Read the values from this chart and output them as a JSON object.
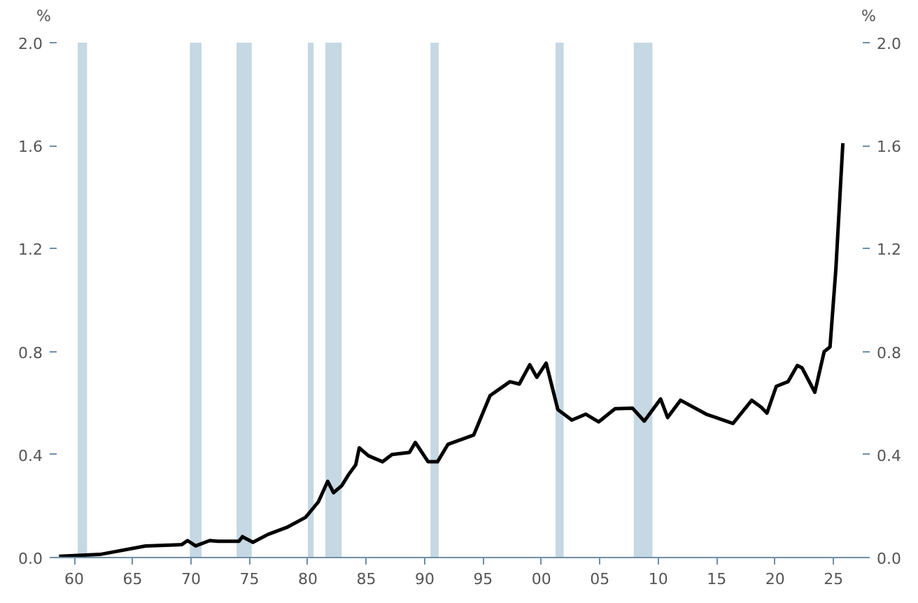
{
  "chart_data": {
    "type": "line",
    "ylabel": "%",
    "y2label": "%",
    "x": [
      1958.7,
      1962.2,
      1966.1,
      1969.2,
      1969.7,
      1970.4,
      1971.6,
      1972.3,
      1974.1,
      1974.4,
      1975.3,
      1976.6,
      1978.2,
      1979.8,
      1980.9,
      1981.7,
      1982.2,
      1982.9,
      1983.5,
      1984.1,
      1984.4,
      1985.2,
      1986.4,
      1987.2,
      1988.7,
      1989.2,
      1990.3,
      1991.1,
      1992.0,
      1994.2,
      1995.6,
      1997.3,
      1998.1,
      1999.0,
      1999.6,
      2000.4,
      2001.4,
      2002.6,
      2003.8,
      2004.9,
      2006.3,
      2007.8,
      2008.8,
      2010.2,
      2010.8,
      2011.9,
      2014.1,
      2016.4,
      2018.0,
      2018.8,
      2019.3,
      2020.1,
      2021.1,
      2021.9,
      2022.3,
      2023.4,
      2024.2,
      2024.7,
      2025.2,
      2025.8
    ],
    "series": [
      {
        "color": "#000000",
        "values": [
          0.005,
          0.012,
          0.045,
          0.05,
          0.066,
          0.045,
          0.066,
          0.063,
          0.063,
          0.081,
          0.059,
          0.09,
          0.117,
          0.156,
          0.216,
          0.296,
          0.252,
          0.279,
          0.323,
          0.36,
          0.426,
          0.395,
          0.372,
          0.4,
          0.408,
          0.447,
          0.372,
          0.372,
          0.44,
          0.476,
          0.629,
          0.683,
          0.674,
          0.749,
          0.7,
          0.755,
          0.575,
          0.534,
          0.557,
          0.527,
          0.578,
          0.58,
          0.53,
          0.616,
          0.544,
          0.611,
          0.557,
          0.521,
          0.611,
          0.584,
          0.561,
          0.665,
          0.683,
          0.746,
          0.737,
          0.642,
          0.8,
          0.818,
          1.12,
          1.61
        ]
      }
    ],
    "xlim": [
      1958.5,
      2027.5
    ],
    "xticks": [
      {
        "value": 1960,
        "label": "60"
      },
      {
        "value": 1965,
        "label": "65"
      },
      {
        "value": 1970,
        "label": "70"
      },
      {
        "value": 1975,
        "label": "75"
      },
      {
        "value": 1980,
        "label": "80"
      },
      {
        "value": 1985,
        "label": "85"
      },
      {
        "value": 1990,
        "label": "90"
      },
      {
        "value": 1995,
        "label": "95"
      },
      {
        "value": 2000,
        "label": "00"
      },
      {
        "value": 2005,
        "label": "05"
      },
      {
        "value": 2010,
        "label": "10"
      },
      {
        "value": 2015,
        "label": "15"
      },
      {
        "value": 2020,
        "label": "20"
      },
      {
        "value": 2025,
        "label": "25"
      }
    ],
    "ylim": [
      0,
      2.0
    ],
    "yticks": [
      {
        "value": 0,
        "label": "0.0"
      },
      {
        "value": 0.4,
        "label": "0.4"
      },
      {
        "value": 0.8,
        "label": "0.8"
      },
      {
        "value": 1.2,
        "label": "1.2"
      },
      {
        "value": 1.6,
        "label": "1.6"
      },
      {
        "value": 2.0,
        "label": "2.0"
      }
    ],
    "y2lim": [
      0,
      2.0
    ],
    "y2ticks": [
      {
        "value": 0,
        "label": "0.0"
      },
      {
        "value": 0.4,
        "label": "0.4"
      },
      {
        "value": 0.8,
        "label": "0.8"
      },
      {
        "value": 1.2,
        "label": "1.2"
      },
      {
        "value": 1.6,
        "label": "1.6"
      },
      {
        "value": 2.0,
        "label": "2.0"
      }
    ],
    "bands": [
      {
        "axis": "x",
        "from": 1960.3,
        "to": 1961.1,
        "color": "#c5d8e3"
      },
      {
        "axis": "x",
        "from": 1969.9,
        "to": 1970.9,
        "color": "#c5d8e3"
      },
      {
        "axis": "x",
        "from": 1973.9,
        "to": 1975.2,
        "color": "#c5d8e3"
      },
      {
        "axis": "x",
        "from": 1980.0,
        "to": 1980.5,
        "color": "#c5d8e3"
      },
      {
        "axis": "x",
        "from": 1981.5,
        "to": 1982.9,
        "color": "#c5d8e3"
      },
      {
        "axis": "x",
        "from": 1990.5,
        "to": 1991.2,
        "color": "#c5d8e3"
      },
      {
        "axis": "x",
        "from": 2001.2,
        "to": 2001.9,
        "color": "#c5d8e3"
      },
      {
        "axis": "x",
        "from": 2007.9,
        "to": 2009.5,
        "color": "#c5d8e3"
      }
    ],
    "grid": false,
    "line_style": "solid",
    "marker": "none"
  }
}
